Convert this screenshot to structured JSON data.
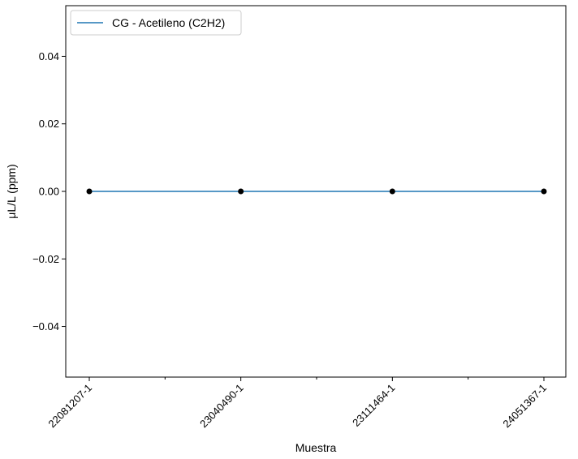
{
  "chart_data": {
    "type": "line",
    "title": "",
    "xlabel": "Muestra",
    "ylabel": "μL/L (ppm)",
    "categories": [
      "22081207-1",
      "23040490-1",
      "23111464-1",
      "24051367-1"
    ],
    "series": [
      {
        "name": "CG - Acetileno (C2H2)",
        "values": [
          0.0,
          0.0,
          0.0,
          0.0
        ],
        "color": "#1f77b4",
        "marker_color": "#000000"
      }
    ],
    "ylim": [
      -0.055,
      0.055
    ],
    "yticks": [
      -0.04,
      -0.02,
      0.0,
      0.02,
      0.04
    ],
    "ytick_labels": [
      "−0.04",
      "−0.02",
      "0.00",
      "0.02",
      "0.04"
    ],
    "grid": false,
    "legend_position": "top-left"
  }
}
